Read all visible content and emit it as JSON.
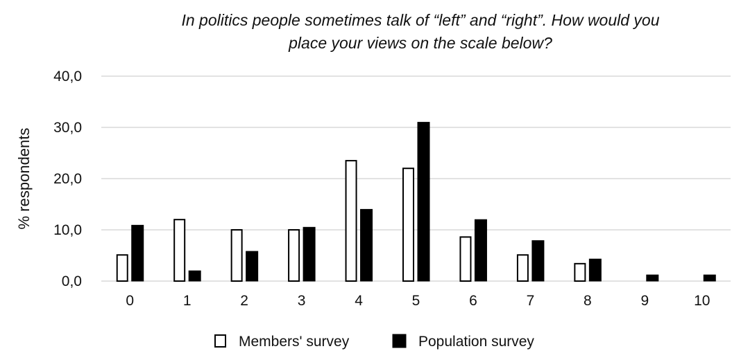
{
  "chart_data": {
    "type": "bar",
    "title_lines": [
      "In politics people sometimes talk of “left” and “right”. How would you",
      "place your views on the scale below?"
    ],
    "xlabel": "",
    "ylabel": "% respondents",
    "ylim": [
      0,
      40
    ],
    "yticks": [
      0,
      10,
      20,
      30,
      40
    ],
    "ytick_labels": [
      "0,0",
      "10,0",
      "20,0",
      "30,0",
      "40,0"
    ],
    "categories": [
      "0",
      "1",
      "2",
      "3",
      "4",
      "5",
      "6",
      "7",
      "8",
      "9",
      "10"
    ],
    "grid": true,
    "legend_position": "bottom",
    "series": [
      {
        "name": "Members' survey",
        "fill": "#ffffff",
        "stroke": "#000000",
        "values": [
          5.1,
          12.0,
          10.0,
          10.0,
          23.5,
          22.0,
          8.6,
          5.1,
          3.4,
          0,
          0
        ]
      },
      {
        "name": "Population survey",
        "fill": "#000000",
        "stroke": "#000000",
        "values": [
          10.9,
          2.0,
          5.8,
          10.5,
          14.0,
          31.0,
          12.0,
          7.9,
          4.3,
          1.2,
          1.2
        ]
      }
    ]
  }
}
